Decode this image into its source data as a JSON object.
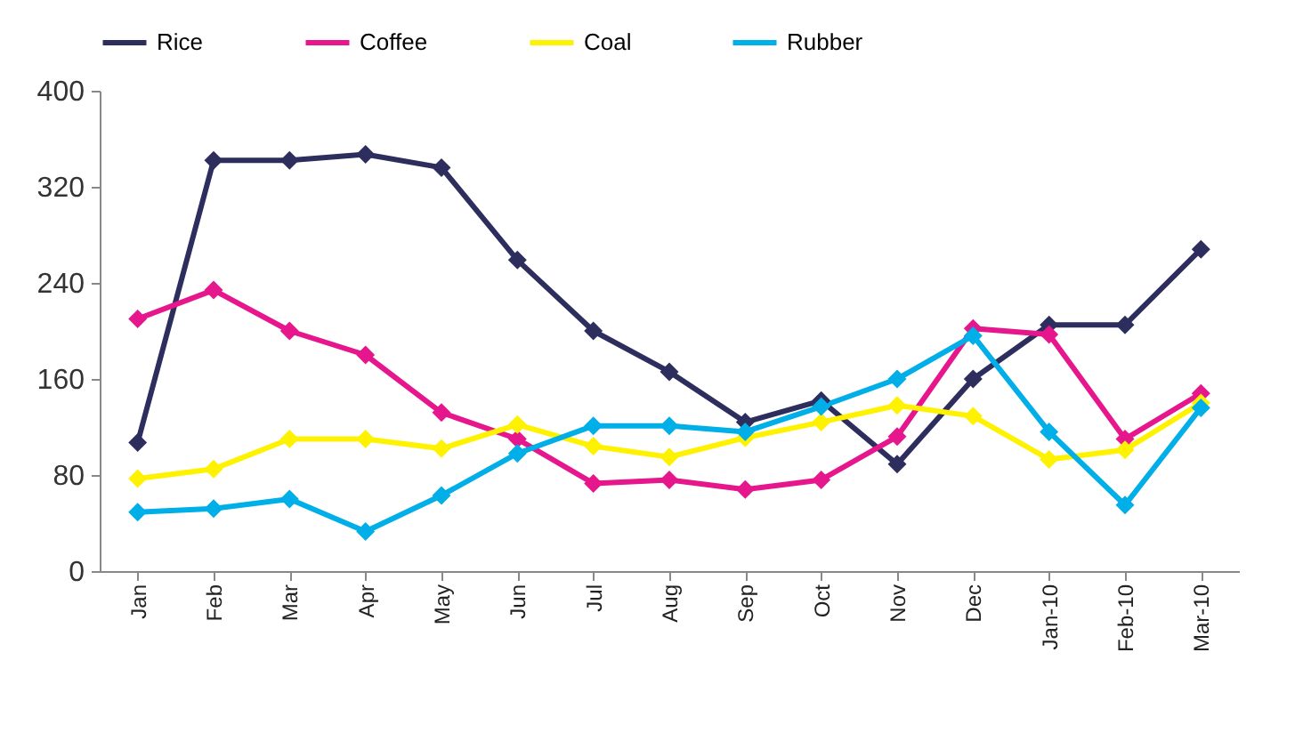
{
  "chart_data": {
    "type": "line",
    "categories": [
      "Jan",
      "Feb",
      "Mar",
      "Apr",
      "May",
      "Jun",
      "Jul",
      "Aug",
      "Sep",
      "Oct",
      "Nov",
      "Dec",
      "Jan-10",
      "Feb-10",
      "Mar-10"
    ],
    "series": [
      {
        "name": "Rice",
        "color": "#2e2e5e",
        "values": [
          107,
          342,
          342,
          347,
          336,
          259,
          200,
          166,
          124,
          142,
          89,
          160,
          205,
          205,
          268
        ]
      },
      {
        "name": "Coffee",
        "color": "#e6168c",
        "values": [
          210,
          234,
          200,
          180,
          132,
          110,
          73,
          76,
          68,
          76,
          112,
          202,
          197,
          110,
          148
        ]
      },
      {
        "name": "Coal",
        "color": "#fff200",
        "values": [
          77,
          85,
          110,
          110,
          102,
          122,
          104,
          95,
          111,
          124,
          138,
          129,
          93,
          101,
          140
        ]
      },
      {
        "name": "Rubber",
        "color": "#00aee8",
        "values": [
          49,
          52,
          60,
          33,
          63,
          98,
          121,
          121,
          116,
          137,
          160,
          196,
          116,
          55,
          136
        ]
      }
    ],
    "ylim": [
      0,
      400
    ],
    "yticks": [
      0,
      80,
      160,
      240,
      320,
      400
    ],
    "grid": false,
    "legend": "top",
    "marker": "diamond",
    "line_style": "solid"
  }
}
